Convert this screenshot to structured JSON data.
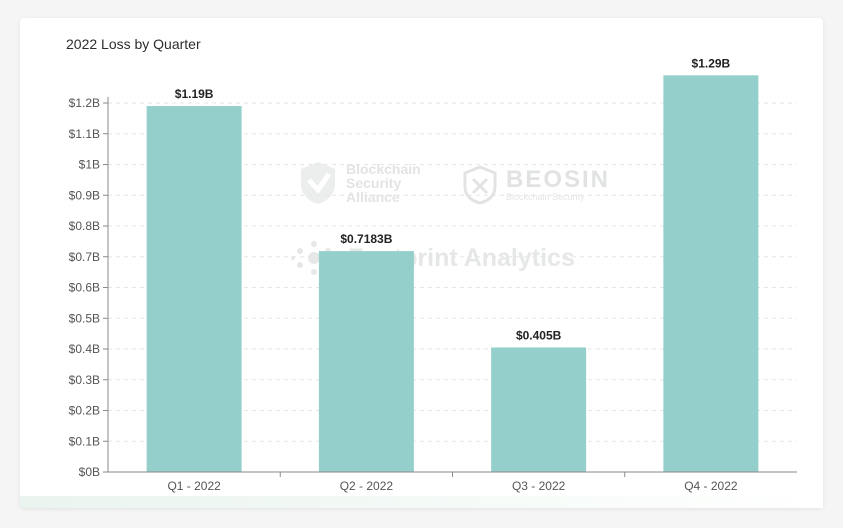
{
  "watermarks": {
    "blockchain_security_alliance": "Blockchain Security Alliance",
    "beosin": "BEOSIN",
    "beosin_sub": "Blockchain Security",
    "footprint": "Footprint Analytics"
  },
  "chart_data": {
    "type": "bar",
    "title": "2022 Loss by Quarter",
    "xlabel": "",
    "ylabel": "",
    "categories": [
      "Q1 - 2022",
      "Q2 - 2022",
      "Q3 - 2022",
      "Q4 - 2022"
    ],
    "values": [
      1.19,
      0.7183,
      0.405,
      1.29
    ],
    "data_labels": [
      "$1.19B",
      "$0.7183B",
      "$0.405B",
      "$1.29B"
    ],
    "ylim": [
      0,
      1.2
    ],
    "y_ticks": [
      "$0B",
      "$0.1B",
      "$0.2B",
      "$0.3B",
      "$0.4B",
      "$0.5B",
      "$0.6B",
      "$0.7B",
      "$0.8B",
      "$0.9B",
      "$1B",
      "$1.1B",
      "$1.2B"
    ],
    "grid": true,
    "bar_color": "#94cfcb"
  }
}
